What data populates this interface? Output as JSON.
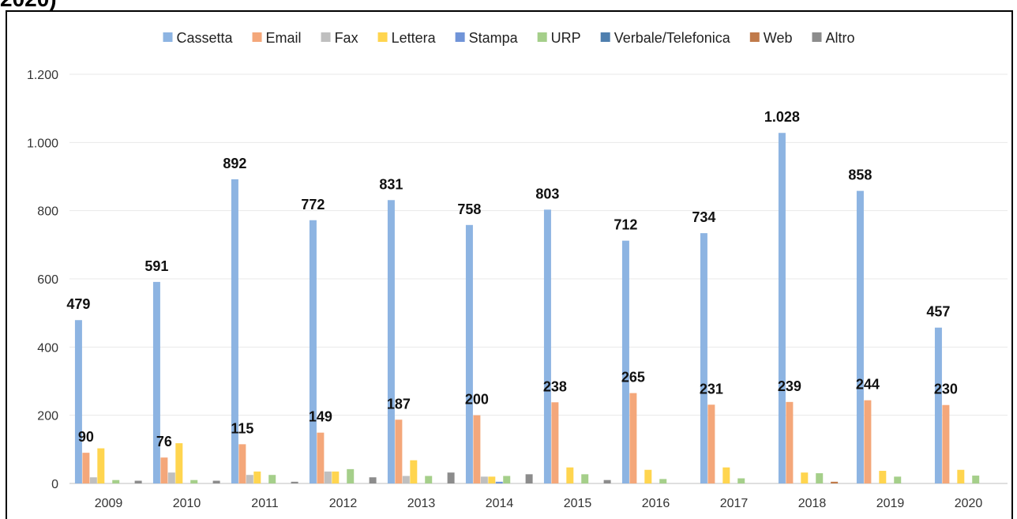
{
  "chart_data": {
    "type": "bar",
    "title": "2020)",
    "categories": [
      "2009",
      "2010",
      "2011",
      "2012",
      "2013",
      "2014",
      "2015",
      "2016",
      "2017",
      "2018",
      "2019",
      "2020"
    ],
    "series": [
      {
        "name": "Cassetta",
        "color": "#8db4e2",
        "values": [
          479,
          591,
          892,
          772,
          831,
          758,
          803,
          712,
          734,
          1028,
          858,
          457
        ],
        "value_labels": [
          "479",
          "591",
          "892",
          "772",
          "831",
          "758",
          "803",
          "712",
          "734",
          "1.028",
          "858",
          "457"
        ]
      },
      {
        "name": "Email",
        "color": "#f4a77a",
        "values": [
          90,
          76,
          115,
          149,
          187,
          200,
          238,
          265,
          231,
          239,
          244,
          230
        ],
        "value_labels": [
          "90",
          "76",
          "115",
          "149",
          "187",
          "200",
          "238",
          "265",
          "231",
          "239",
          "244",
          "230"
        ]
      },
      {
        "name": "Fax",
        "color": "#bfbfbf",
        "values": [
          18,
          32,
          25,
          35,
          22,
          20,
          0,
          0,
          0,
          0,
          0,
          0
        ]
      },
      {
        "name": "Lettera",
        "color": "#ffd54f",
        "values": [
          103,
          118,
          35,
          35,
          68,
          20,
          47,
          40,
          47,
          32,
          37,
          40
        ]
      },
      {
        "name": "Stampa",
        "color": "#7094d8",
        "values": [
          0,
          0,
          0,
          0,
          0,
          5,
          0,
          0,
          0,
          0,
          0,
          0
        ]
      },
      {
        "name": "URP",
        "color": "#a5cf8a",
        "values": [
          10,
          10,
          25,
          42,
          22,
          22,
          27,
          13,
          15,
          30,
          20,
          23
        ]
      },
      {
        "name": "Verbale/Telefonica",
        "color": "#4f7fae",
        "values": [
          0,
          0,
          0,
          0,
          0,
          0,
          0,
          0,
          0,
          0,
          0,
          0
        ]
      },
      {
        "name": "Web",
        "color": "#c07a4a",
        "values": [
          0,
          0,
          0,
          0,
          0,
          0,
          0,
          0,
          0,
          5,
          0,
          0
        ]
      },
      {
        "name": "Altro",
        "color": "#8c8c8c",
        "values": [
          8,
          8,
          5,
          18,
          32,
          27,
          10,
          0,
          0,
          0,
          0,
          0
        ]
      }
    ],
    "ylim": [
      0,
      1200
    ],
    "yticks": [
      0,
      200,
      400,
      600,
      800,
      {
        "value": 1000,
        "label": "1.000"
      },
      {
        "value": 1200,
        "label": "1.200"
      }
    ],
    "grid": true,
    "legend": "top"
  }
}
